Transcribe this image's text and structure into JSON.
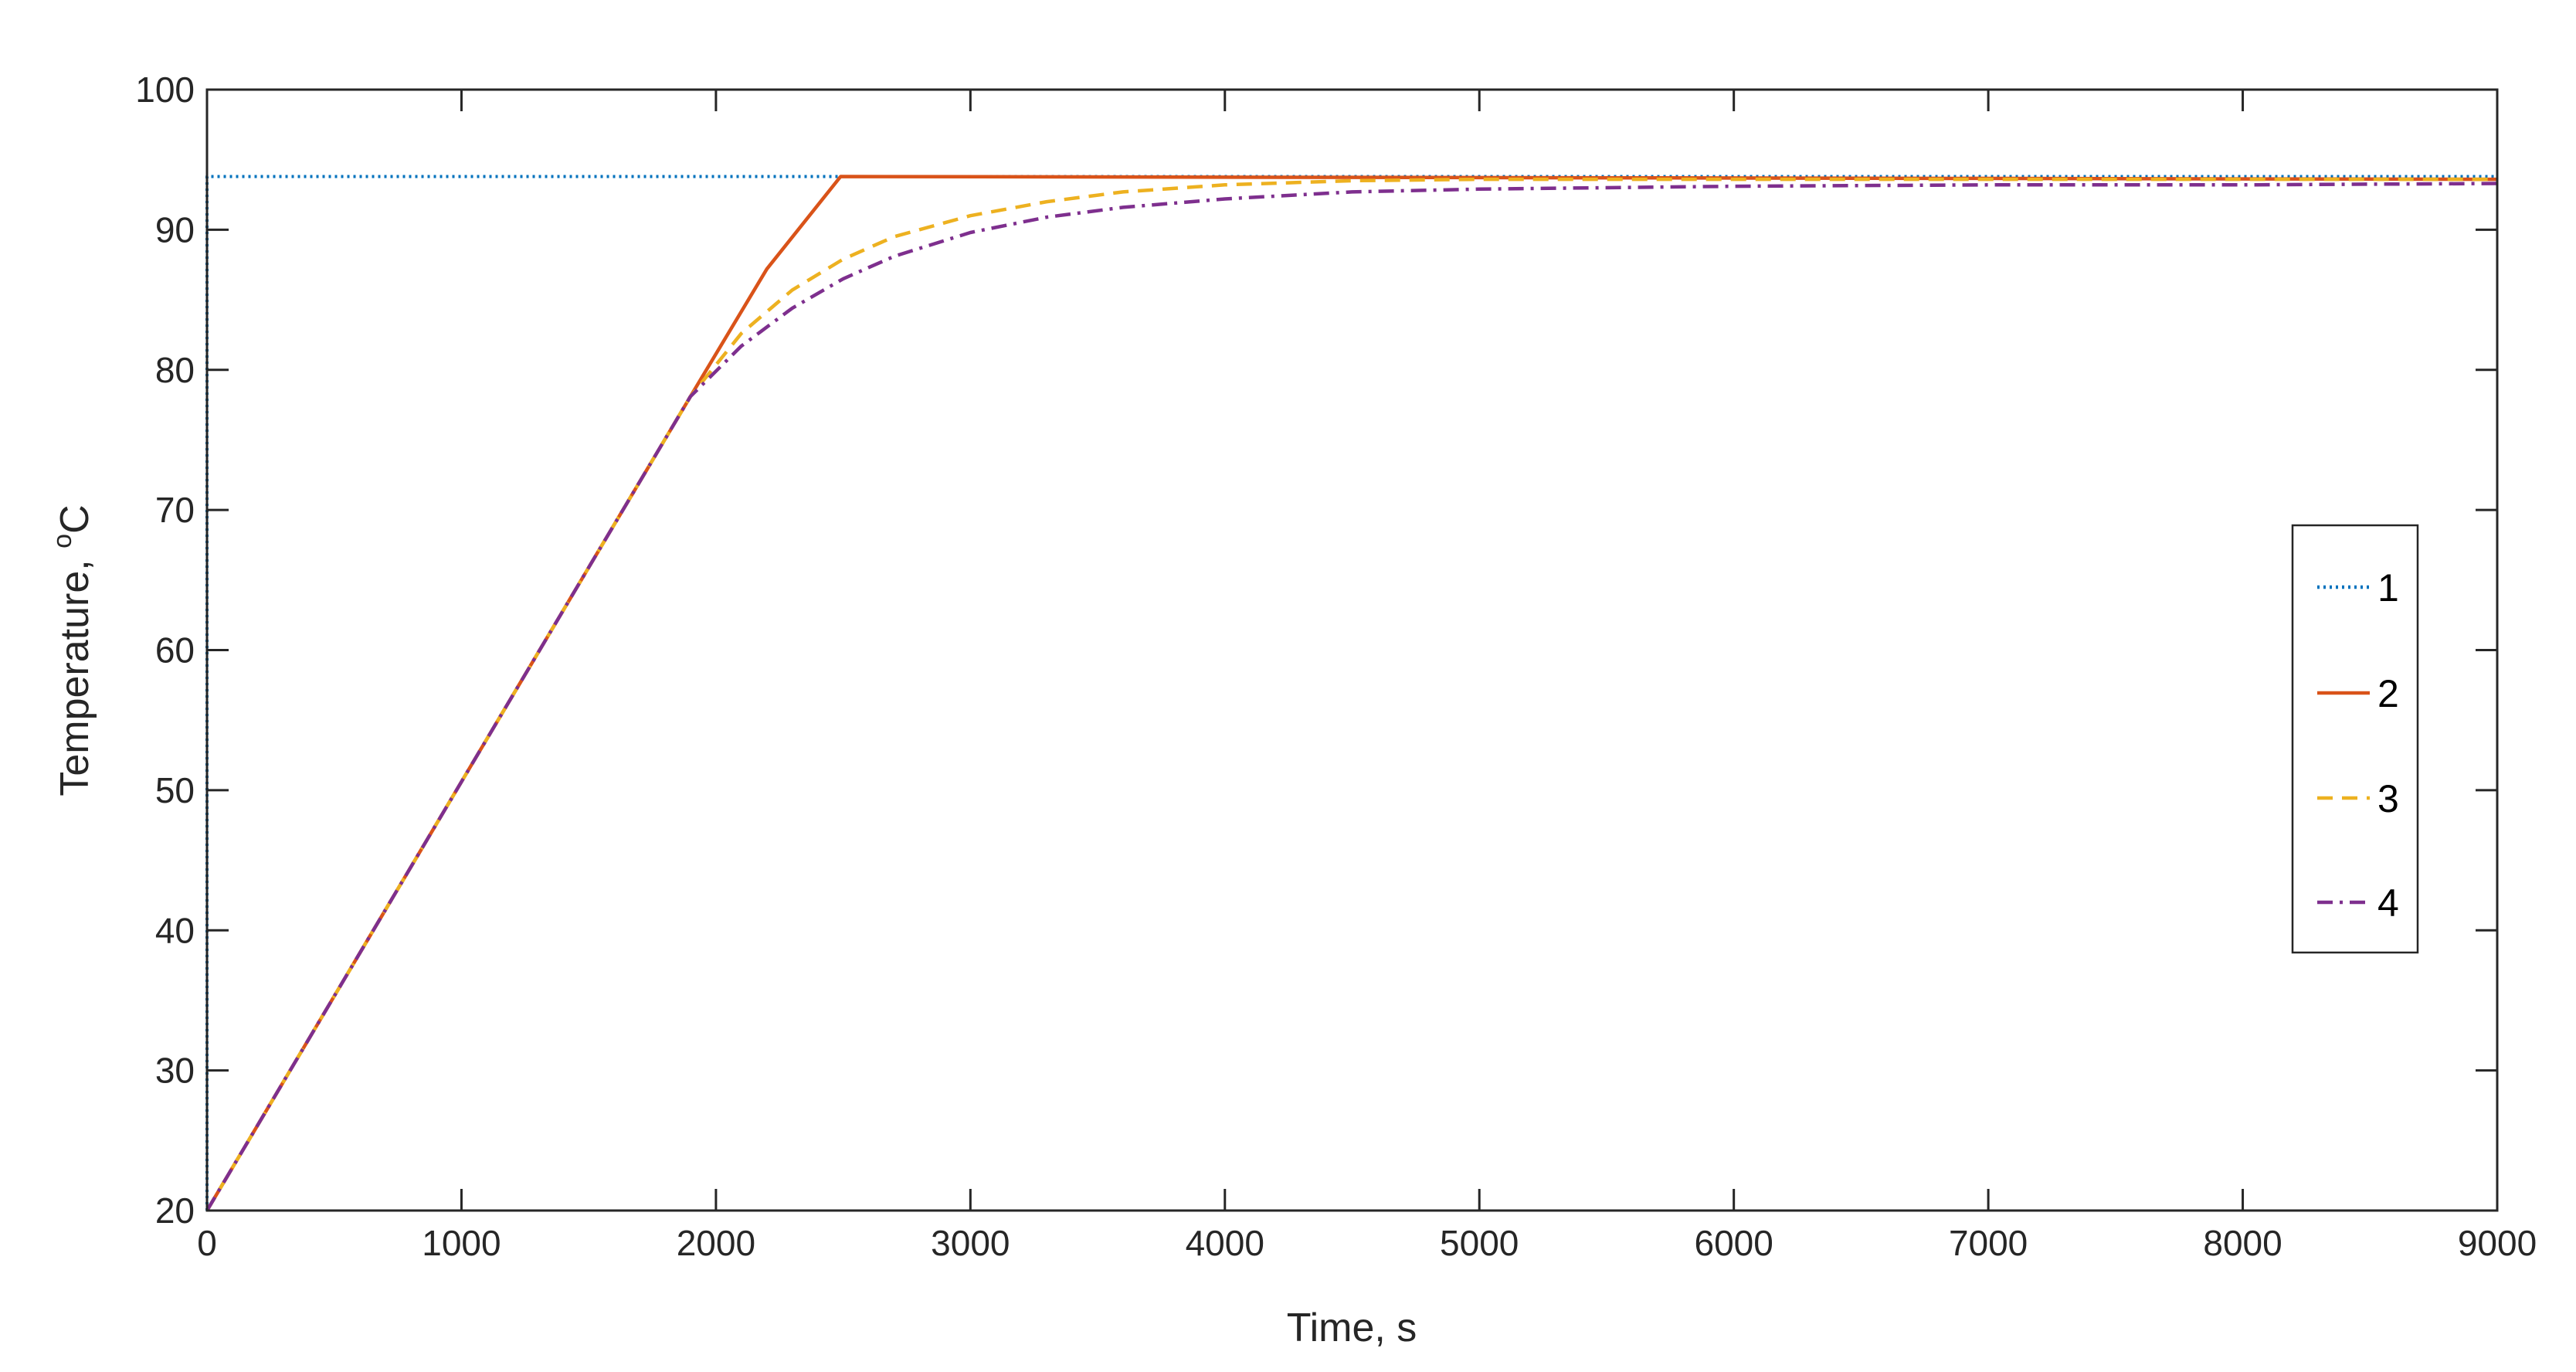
{
  "chart_data": {
    "type": "line",
    "xlabel": "Time, s",
    "ylabel_main": "Temperature, ",
    "ylabel_sup": "o",
    "ylabel_tail": "C",
    "xlim": [
      0,
      9000
    ],
    "ylim": [
      20,
      100
    ],
    "xticks": [
      0,
      1000,
      2000,
      3000,
      4000,
      5000,
      6000,
      7000,
      8000,
      9000
    ],
    "yticks": [
      20,
      30,
      40,
      50,
      60,
      70,
      80,
      90,
      100
    ],
    "grid": false,
    "legend_position": "right",
    "series": [
      {
        "name": "1",
        "color": "#0072BD",
        "style": "dotted",
        "x": [
          0,
          0,
          9000
        ],
        "y": [
          20,
          93.8,
          93.8
        ]
      },
      {
        "name": "2",
        "color": "#D95319",
        "style": "solid",
        "x": [
          0,
          500,
          1000,
          1500,
          1900,
          2200,
          2490,
          9000
        ],
        "y": [
          20,
          35.3,
          50.6,
          65.9,
          78.1,
          87.2,
          93.8,
          93.6
        ]
      },
      {
        "name": "3",
        "color": "#EDB120",
        "style": "dashed",
        "x": [
          0,
          500,
          1000,
          1500,
          1900,
          2100,
          2300,
          2500,
          2700,
          3000,
          3300,
          3600,
          4000,
          4500,
          5000,
          6000,
          7000,
          8000,
          9000
        ],
        "y": [
          20,
          35.3,
          50.6,
          65.9,
          78.1,
          82.6,
          85.7,
          87.9,
          89.5,
          91.0,
          92.0,
          92.7,
          93.2,
          93.5,
          93.6,
          93.6,
          93.6,
          93.6,
          93.6
        ]
      },
      {
        "name": "4",
        "color": "#7E2F8E",
        "style": "dashdot",
        "x": [
          0,
          500,
          1000,
          1500,
          1900,
          2100,
          2300,
          2500,
          2700,
          3000,
          3300,
          3600,
          4000,
          4500,
          5000,
          6000,
          7000,
          8000,
          9000
        ],
        "y": [
          20,
          35.3,
          50.6,
          65.9,
          78.1,
          81.7,
          84.4,
          86.5,
          88.1,
          89.8,
          90.9,
          91.6,
          92.2,
          92.7,
          92.9,
          93.1,
          93.2,
          93.2,
          93.3
        ]
      }
    ]
  }
}
